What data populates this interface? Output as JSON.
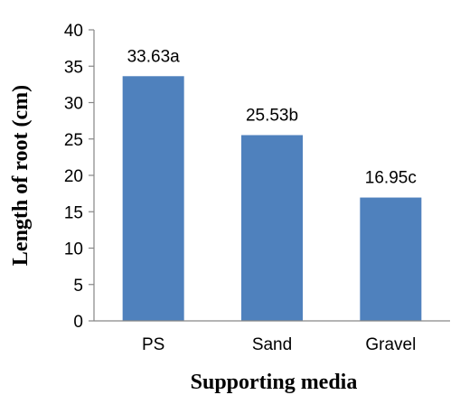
{
  "chart_data": {
    "type": "bar",
    "categories": [
      "PS",
      "Sand",
      "Gravel"
    ],
    "values": [
      33.63,
      25.53,
      16.95
    ],
    "data_labels": [
      "33.63a",
      "25.53b",
      "16.95c"
    ],
    "title": "",
    "xlabel": "Supporting media",
    "ylabel": "Length of root (cm)",
    "ylim": [
      0,
      40
    ],
    "yticks": [
      0,
      5,
      10,
      15,
      20,
      25,
      30,
      35,
      40
    ],
    "grid": false,
    "bar_color": "#4f81bd"
  }
}
